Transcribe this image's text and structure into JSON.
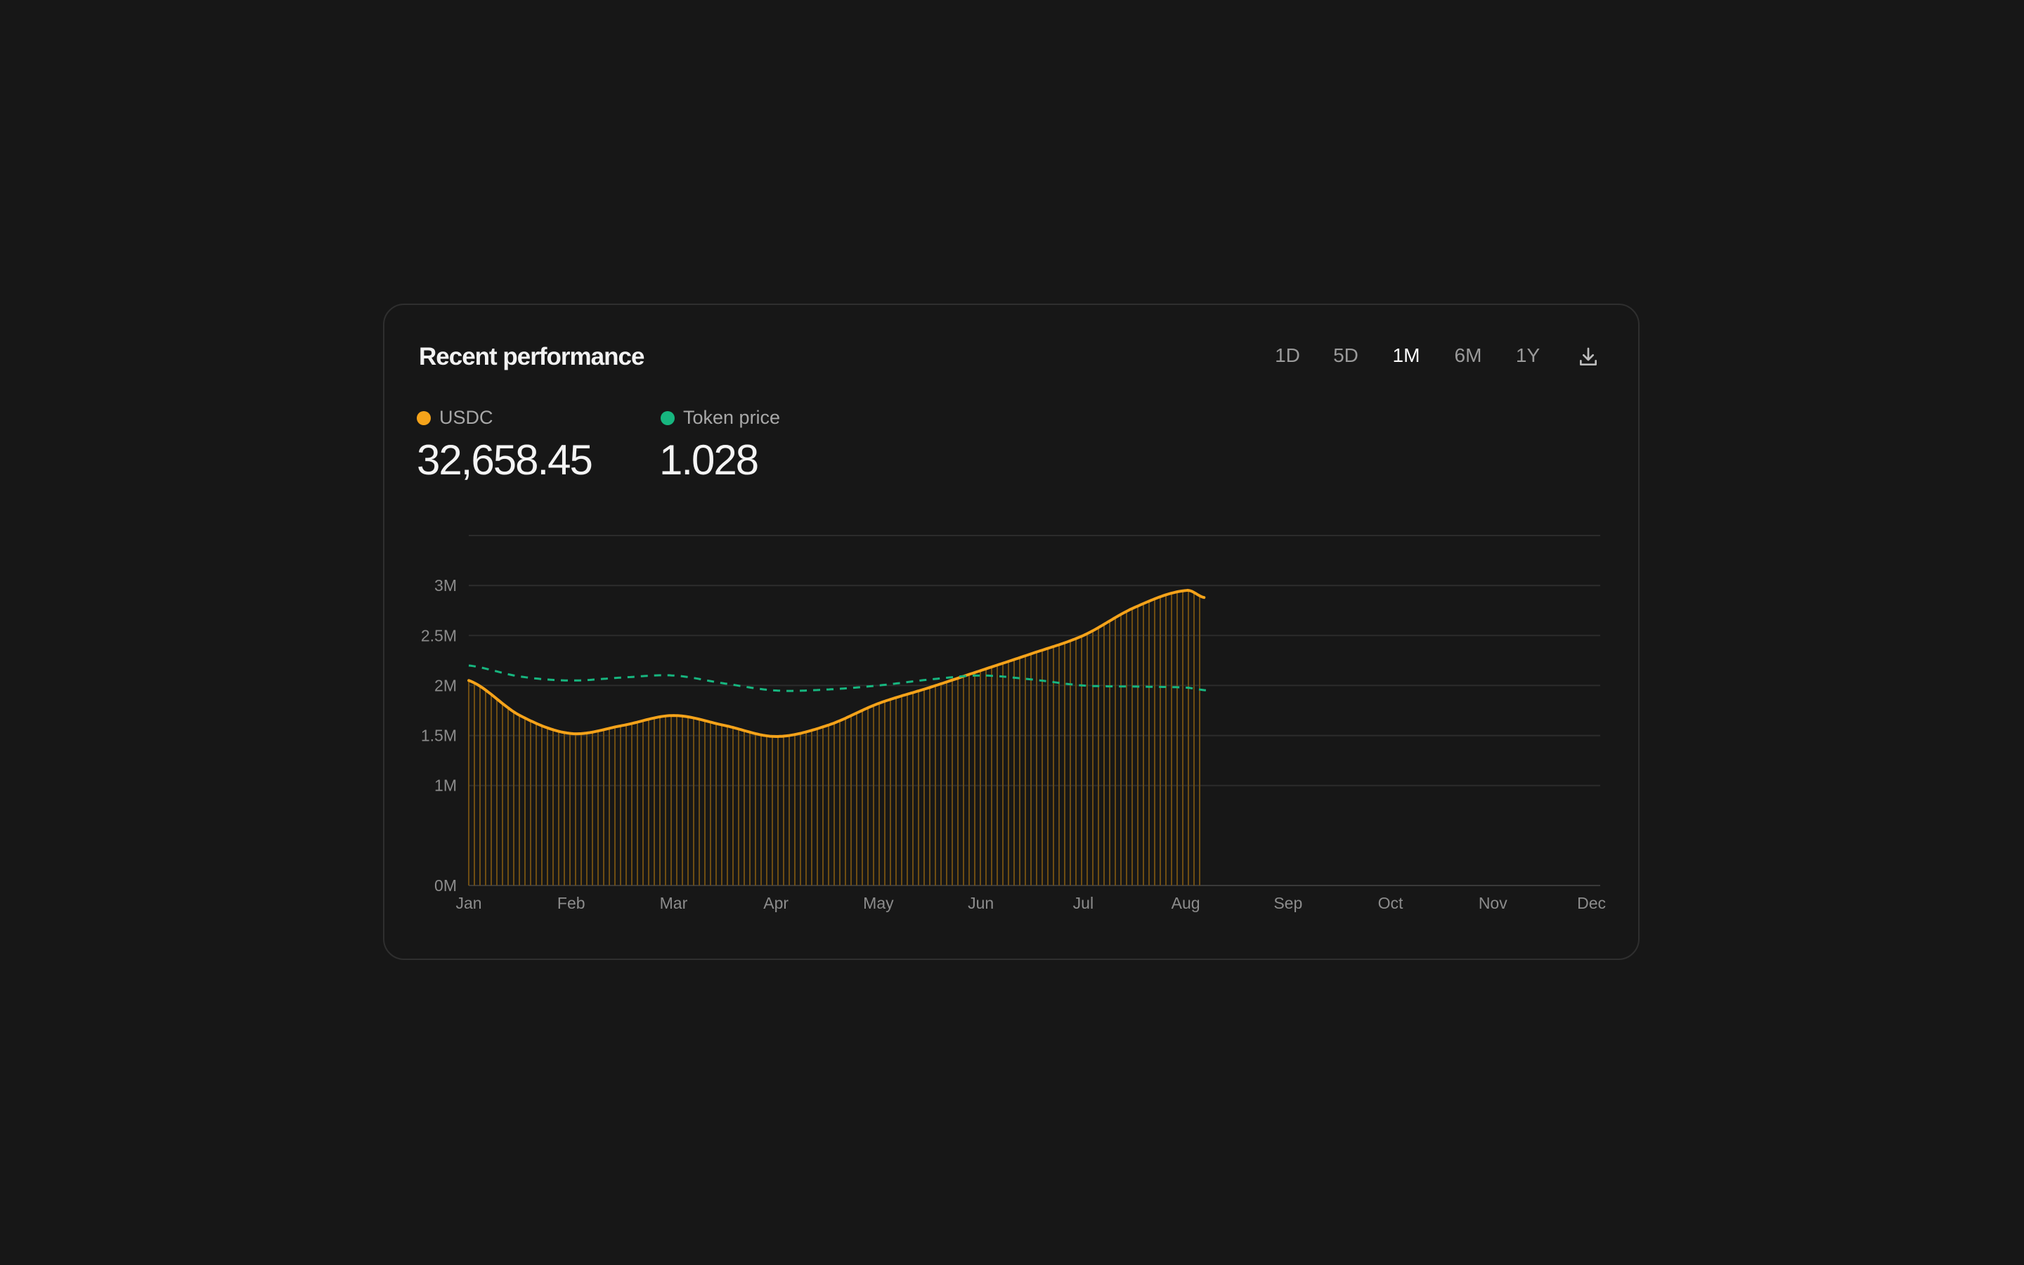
{
  "header": {
    "title": "Recent performance",
    "ranges": [
      {
        "label": "1D",
        "active": false
      },
      {
        "label": "5D",
        "active": false
      },
      {
        "label": "1M",
        "active": true
      },
      {
        "label": "6M",
        "active": false
      },
      {
        "label": "1Y",
        "active": false
      }
    ],
    "download_icon": "download-icon"
  },
  "summary": {
    "usdc": {
      "label": "USDC",
      "value": "32,658.45",
      "color": "#f5a31a"
    },
    "token": {
      "label": "Token price",
      "value": "1.028",
      "color": "#17b67f"
    }
  },
  "chart_data": {
    "type": "line",
    "title": "",
    "xlabel": "",
    "ylabel": "",
    "categories": [
      "Jan",
      "Feb",
      "Mar",
      "Apr",
      "May",
      "Jun",
      "Jul",
      "Aug",
      "Sep",
      "Oct",
      "Nov",
      "Dec"
    ],
    "y_ticks": [
      {
        "value": 0,
        "label": "0M"
      },
      {
        "value": 1,
        "label": "1M"
      },
      {
        "value": 1.5,
        "label": "1.5M"
      },
      {
        "value": 2,
        "label": "2M"
      },
      {
        "value": 2.5,
        "label": "2.5M"
      },
      {
        "value": 3,
        "label": "3M"
      }
    ],
    "ylim": [
      0,
      3.5
    ],
    "grid": true,
    "series": [
      {
        "name": "USDC",
        "color": "#f5a31a",
        "style": "solid-with-bars",
        "x": [
          0,
          0.5,
          1,
          1.5,
          2,
          2.5,
          3,
          3.5,
          4,
          4.5,
          5,
          5.5,
          6,
          6.5,
          7,
          7.18
        ],
        "values": [
          2.05,
          1.7,
          1.52,
          1.6,
          1.7,
          1.6,
          1.49,
          1.6,
          1.82,
          1.98,
          2.15,
          2.32,
          2.5,
          2.78,
          2.95,
          2.88
        ]
      },
      {
        "name": "Token price",
        "color": "#17b67f",
        "style": "dashed",
        "x": [
          0,
          0.5,
          1,
          1.5,
          2,
          2.5,
          3,
          3.5,
          4,
          4.5,
          5,
          5.5,
          6,
          6.5,
          7,
          7.22
        ],
        "values": [
          2.2,
          2.09,
          2.05,
          2.08,
          2.1,
          2.02,
          1.95,
          1.96,
          2.0,
          2.06,
          2.1,
          2.06,
          2.0,
          1.99,
          1.98,
          1.95
        ]
      }
    ]
  }
}
